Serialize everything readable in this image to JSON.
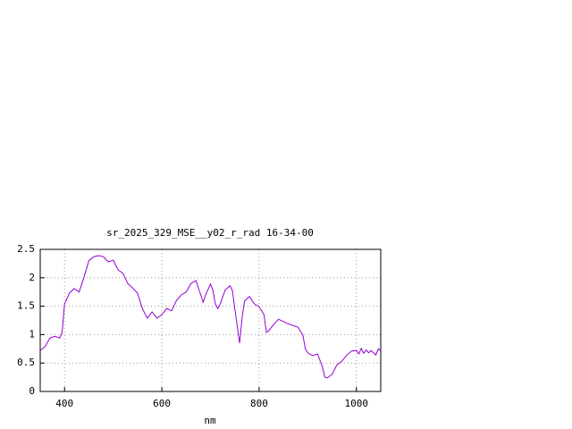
{
  "chart_data": {
    "type": "line",
    "title": "sr_2025_329_MSE__y02_r_rad 16-34-00",
    "x_label": "nm",
    "x": [
      350,
      360,
      370,
      380,
      390,
      395,
      400,
      410,
      420,
      430,
      440,
      450,
      460,
      470,
      480,
      490,
      500,
      510,
      520,
      530,
      540,
      550,
      560,
      570,
      580,
      590,
      600,
      610,
      620,
      630,
      640,
      650,
      660,
      670,
      680,
      685,
      690,
      700,
      705,
      710,
      715,
      720,
      730,
      740,
      745,
      750,
      755,
      760,
      765,
      770,
      780,
      790,
      800,
      810,
      815,
      820,
      830,
      840,
      850,
      860,
      870,
      880,
      890,
      895,
      900,
      910,
      920,
      930,
      935,
      940,
      950,
      960,
      970,
      980,
      990,
      1000,
      1005,
      1010,
      1015,
      1020,
      1025,
      1030,
      1040,
      1045,
      1050
    ],
    "series": [
      {
        "color": "#9400d3",
        "values": [
          0.72,
          0.79,
          0.94,
          0.97,
          0.94,
          1.04,
          1.54,
          1.73,
          1.81,
          1.75,
          2.01,
          2.3,
          2.37,
          2.39,
          2.37,
          2.28,
          2.31,
          2.14,
          2.08,
          1.9,
          1.82,
          1.73,
          1.46,
          1.29,
          1.4,
          1.29,
          1.35,
          1.46,
          1.42,
          1.6,
          1.7,
          1.75,
          1.9,
          1.95,
          1.7,
          1.57,
          1.7,
          1.89,
          1.78,
          1.54,
          1.46,
          1.54,
          1.78,
          1.86,
          1.78,
          1.46,
          1.15,
          0.85,
          1.3,
          1.59,
          1.67,
          1.54,
          1.49,
          1.35,
          1.04,
          1.07,
          1.18,
          1.27,
          1.23,
          1.19,
          1.16,
          1.13,
          0.99,
          0.75,
          0.68,
          0.63,
          0.66,
          0.44,
          0.25,
          0.24,
          0.3,
          0.47,
          0.53,
          0.64,
          0.71,
          0.72,
          0.66,
          0.76,
          0.67,
          0.73,
          0.68,
          0.72,
          0.64,
          0.75,
          0.72
        ]
      }
    ],
    "xlim": [
      350,
      1050
    ],
    "ylim": [
      0,
      2.5
    ],
    "xticks": [
      400,
      600,
      800,
      1000
    ],
    "yticks": [
      0,
      0.5,
      1,
      1.5,
      2,
      2.5
    ],
    "grid": true
  }
}
